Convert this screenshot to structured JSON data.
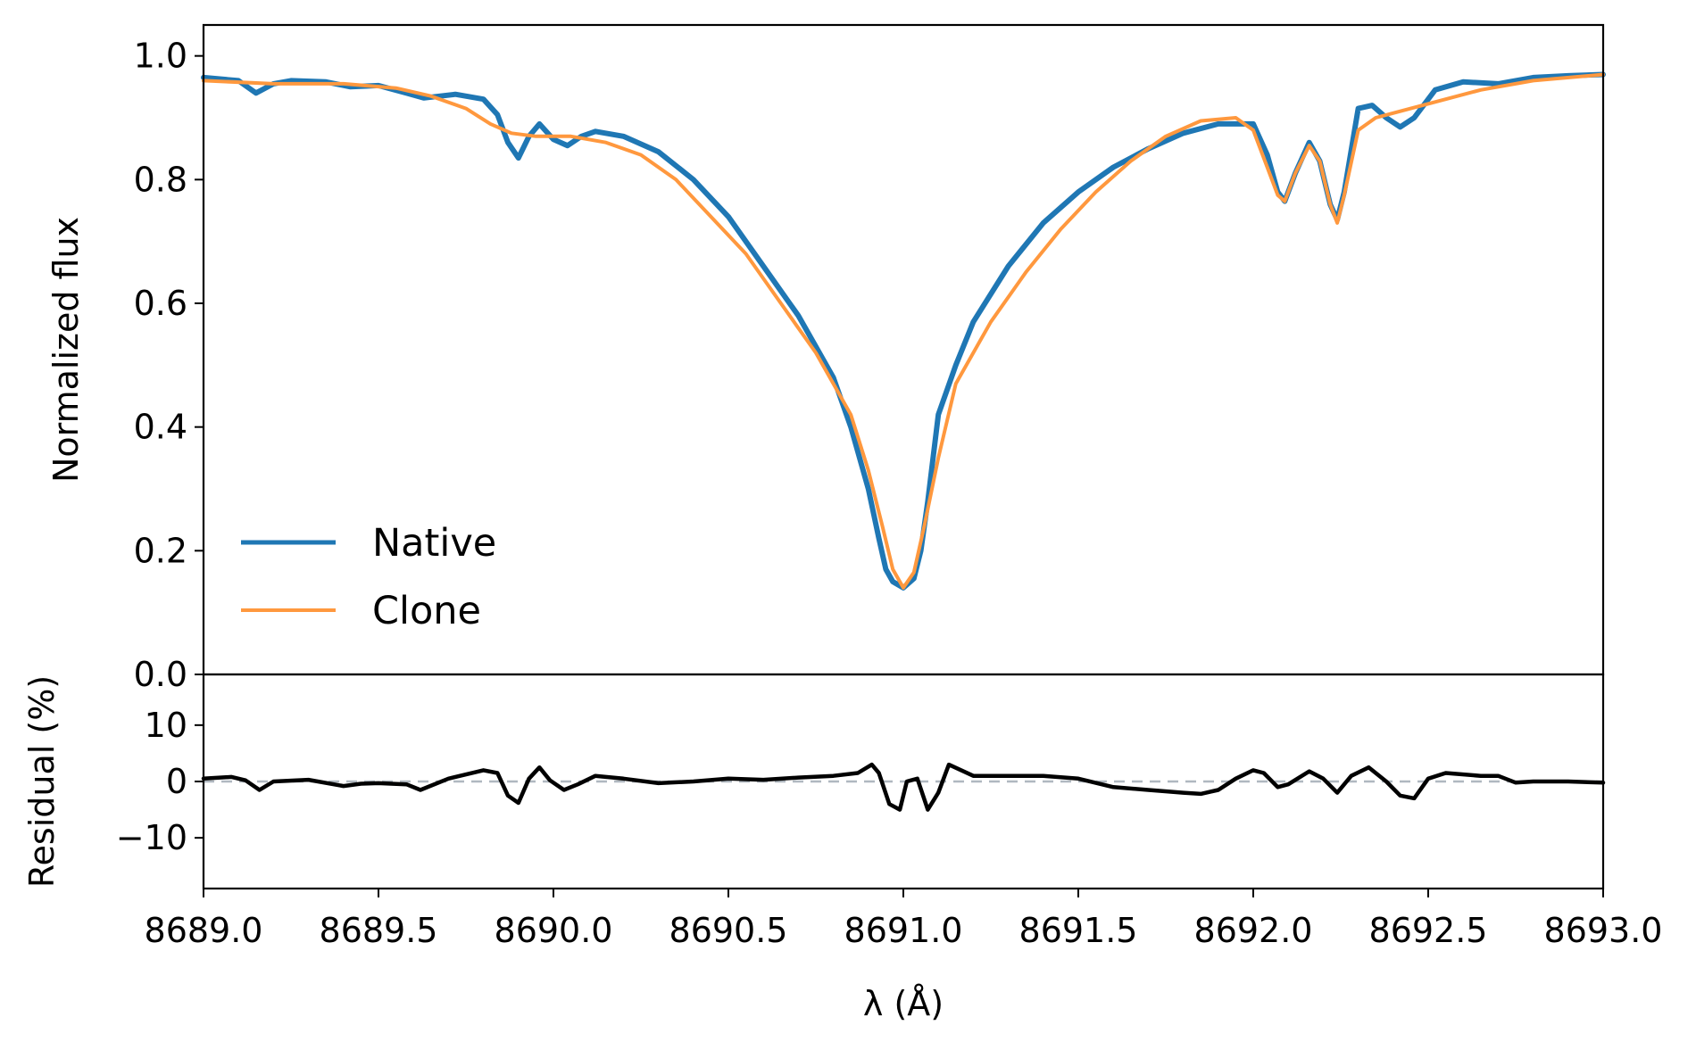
{
  "chart_data": [
    {
      "type": "line",
      "panel": "spectrum",
      "xlim": [
        8689.0,
        8693.0
      ],
      "ylim": [
        0.0,
        1.05
      ],
      "xlabel": "",
      "ylabel": "Normalized flux",
      "yticks": [
        "0.0",
        "0.2",
        "0.4",
        "0.6",
        "0.8",
        "1.0"
      ],
      "grid": false,
      "legend_position": "lower-left",
      "series": [
        {
          "name": "Native",
          "color": "#1f77b4",
          "x": [
            8689.0,
            8689.1,
            8689.15,
            8689.2,
            8689.25,
            8689.35,
            8689.42,
            8689.5,
            8689.58,
            8689.63,
            8689.72,
            8689.8,
            8689.84,
            8689.87,
            8689.9,
            8689.93,
            8689.96,
            8690.0,
            8690.04,
            8690.08,
            8690.12,
            8690.2,
            8690.3,
            8690.4,
            8690.5,
            8690.6,
            8690.7,
            8690.8,
            8690.85,
            8690.9,
            8690.93,
            8690.95,
            8690.97,
            8691.0,
            8691.03,
            8691.05,
            8691.07,
            8691.1,
            8691.15,
            8691.2,
            8691.3,
            8691.4,
            8691.5,
            8691.6,
            8691.7,
            8691.8,
            8691.9,
            8692.0,
            8692.04,
            8692.07,
            8692.09,
            8692.12,
            8692.16,
            8692.19,
            8692.22,
            8692.24,
            8692.26,
            8692.3,
            8692.34,
            8692.38,
            8692.42,
            8692.46,
            8692.52,
            8692.6,
            8692.7,
            8692.8,
            8692.9,
            8693.0
          ],
          "y": [
            0.965,
            0.96,
            0.94,
            0.955,
            0.96,
            0.958,
            0.95,
            0.952,
            0.94,
            0.932,
            0.938,
            0.93,
            0.905,
            0.86,
            0.835,
            0.87,
            0.89,
            0.865,
            0.855,
            0.87,
            0.878,
            0.87,
            0.845,
            0.8,
            0.74,
            0.66,
            0.58,
            0.48,
            0.4,
            0.3,
            0.22,
            0.17,
            0.15,
            0.14,
            0.155,
            0.2,
            0.28,
            0.42,
            0.5,
            0.57,
            0.66,
            0.73,
            0.78,
            0.82,
            0.85,
            0.875,
            0.89,
            0.89,
            0.84,
            0.78,
            0.765,
            0.81,
            0.86,
            0.83,
            0.76,
            0.735,
            0.78,
            0.915,
            0.92,
            0.9,
            0.885,
            0.9,
            0.945,
            0.958,
            0.955,
            0.965,
            0.968,
            0.97
          ]
        },
        {
          "name": "Clone",
          "color": "#ff983e",
          "x": [
            8689.0,
            8689.2,
            8689.4,
            8689.55,
            8689.65,
            8689.75,
            8689.82,
            8689.88,
            8689.95,
            8690.05,
            8690.15,
            8690.25,
            8690.35,
            8690.45,
            8690.55,
            8690.65,
            8690.75,
            8690.85,
            8690.9,
            8690.94,
            8690.97,
            8691.0,
            8691.03,
            8691.06,
            8691.1,
            8691.15,
            8691.25,
            8691.35,
            8691.45,
            8691.55,
            8691.65,
            8691.75,
            8691.85,
            8691.95,
            8692.0,
            8692.04,
            8692.07,
            8692.09,
            8692.12,
            8692.16,
            8692.19,
            8692.22,
            8692.24,
            8692.26,
            8692.3,
            8692.35,
            8692.45,
            8692.55,
            8692.65,
            8692.8,
            8693.0
          ],
          "y": [
            0.96,
            0.955,
            0.955,
            0.948,
            0.935,
            0.915,
            0.89,
            0.875,
            0.87,
            0.87,
            0.86,
            0.84,
            0.8,
            0.74,
            0.68,
            0.6,
            0.52,
            0.42,
            0.33,
            0.24,
            0.17,
            0.14,
            0.165,
            0.24,
            0.35,
            0.47,
            0.57,
            0.65,
            0.72,
            0.78,
            0.83,
            0.87,
            0.895,
            0.9,
            0.88,
            0.82,
            0.775,
            0.765,
            0.81,
            0.855,
            0.83,
            0.76,
            0.73,
            0.775,
            0.88,
            0.9,
            0.915,
            0.93,
            0.945,
            0.96,
            0.97
          ]
        }
      ]
    },
    {
      "type": "line",
      "panel": "residual",
      "xlim": [
        8689.0,
        8693.0
      ],
      "ylim": [
        -19,
        19
      ],
      "xlabel": "λ (Å)",
      "ylabel": "Residual (%)",
      "xticks": [
        "8689.0",
        "8689.5",
        "8690.0",
        "8690.5",
        "8691.0",
        "8691.5",
        "8692.0",
        "8692.5",
        "8693.0"
      ],
      "yticks": [
        "−10",
        "0",
        "10"
      ],
      "reference_line": 0,
      "reference_line_color": "#b0b8c0",
      "series": [
        {
          "color": "#000000",
          "x": [
            8689.0,
            8689.08,
            8689.12,
            8689.16,
            8689.2,
            8689.3,
            8689.4,
            8689.45,
            8689.5,
            8689.58,
            8689.62,
            8689.7,
            8689.8,
            8689.84,
            8689.87,
            8689.9,
            8689.93,
            8689.96,
            8689.99,
            8690.03,
            8690.07,
            8690.12,
            8690.2,
            8690.3,
            8690.4,
            8690.5,
            8690.6,
            8690.7,
            8690.8,
            8690.87,
            8690.91,
            8690.93,
            8690.96,
            8690.99,
            8691.01,
            8691.04,
            8691.07,
            8691.1,
            8691.13,
            8691.2,
            8691.3,
            8691.4,
            8691.5,
            8691.6,
            8691.7,
            8691.8,
            8691.85,
            8691.9,
            8691.95,
            8692.0,
            8692.03,
            8692.07,
            8692.1,
            8692.16,
            8692.2,
            8692.24,
            8692.28,
            8692.33,
            8692.38,
            8692.42,
            8692.46,
            8692.5,
            8692.55,
            8692.65,
            8692.7,
            8692.75,
            8692.8,
            8692.9,
            8693.0
          ],
          "y": [
            0.5,
            0.8,
            0.2,
            -1.5,
            0.0,
            0.3,
            -0.8,
            -0.4,
            -0.3,
            -0.5,
            -1.5,
            0.5,
            2.0,
            1.5,
            -2.5,
            -3.8,
            0.5,
            2.5,
            0.2,
            -1.5,
            -0.5,
            1.0,
            0.5,
            -0.3,
            0.0,
            0.5,
            0.3,
            0.7,
            1.0,
            1.5,
            3.0,
            1.5,
            -4.0,
            -5.0,
            0.0,
            0.5,
            -5.0,
            -2.0,
            3.0,
            1.0,
            1.0,
            1.0,
            0.5,
            -1.0,
            -1.5,
            -2.0,
            -2.2,
            -1.5,
            0.5,
            2.0,
            1.5,
            -1.0,
            -0.5,
            1.8,
            0.5,
            -2.0,
            1.0,
            2.5,
            0.0,
            -2.5,
            -3.0,
            0.5,
            1.5,
            1.0,
            1.0,
            -0.2,
            0.0,
            0.0,
            -0.2
          ]
        }
      ]
    }
  ]
}
